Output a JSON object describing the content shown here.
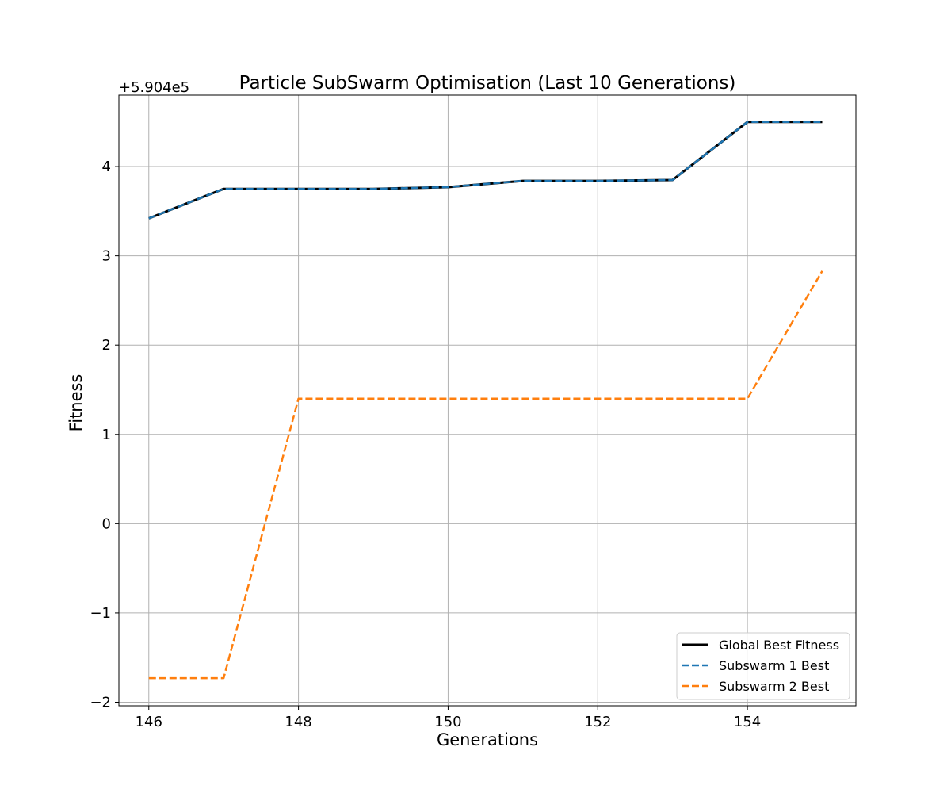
{
  "chart_data": {
    "type": "line",
    "title": "Particle SubSwarm Optimisation (Last 10 Generations)",
    "xlabel": "Generations",
    "ylabel": "Fitness",
    "y_offset_label": "+5.904e5",
    "y_offset": 590400,
    "x": [
      146,
      147,
      148,
      149,
      150,
      151,
      152,
      153,
      154,
      155
    ],
    "xlim": [
      145.6,
      155.45
    ],
    "ylim": [
      590397.96,
      590404.8
    ],
    "xticks": [
      146,
      148,
      150,
      152,
      154
    ],
    "yticks": [
      -2,
      -1,
      0,
      1,
      2,
      3,
      4
    ],
    "ytick_labels": [
      "−2",
      "−1",
      "0",
      "1",
      "2",
      "3",
      "4"
    ],
    "grid": true,
    "legend_position": "lower-right",
    "series": [
      {
        "name": "Global Best Fitness",
        "color": "#000000",
        "style": "solid",
        "values": [
          590403.42,
          590403.75,
          590403.75,
          590403.75,
          590403.77,
          590403.84,
          590403.84,
          590403.85,
          590404.5,
          590404.5
        ]
      },
      {
        "name": "Subswarm 1 Best",
        "color": "#1f77b4",
        "style": "dashed",
        "values": [
          590403.42,
          590403.75,
          590403.75,
          590403.75,
          590403.77,
          590403.84,
          590403.84,
          590403.85,
          590404.5,
          590404.5
        ]
      },
      {
        "name": "Subswarm 2 Best",
        "color": "#ff7f0e",
        "style": "dashed",
        "values": [
          590398.27,
          590398.27,
          590401.4,
          590401.4,
          590401.4,
          590401.4,
          590401.4,
          590401.4,
          590401.4,
          590402.83
        ]
      }
    ]
  }
}
